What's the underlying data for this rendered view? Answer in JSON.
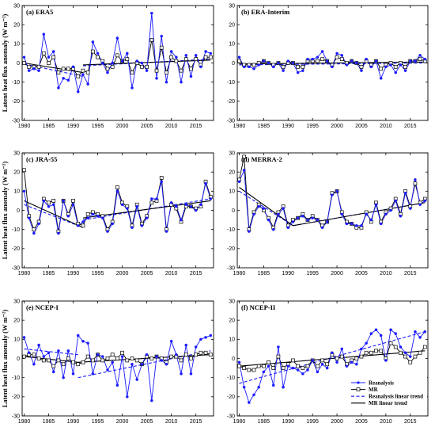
{
  "ylabel": "Latent heat flux anomaly (W m⁻²)",
  "legend": {
    "reanalysis": "Reanalysis",
    "mr": "MR",
    "rea_trend": "Reanalysis linear trend",
    "mr_trend": "MR linear trend"
  },
  "colors": {
    "reanalysis": "#1a1aff",
    "mr": "#000000"
  },
  "chart_data": [
    {
      "type": "line",
      "title": "(a) ERA5",
      "x_start": 1980,
      "xticks": [
        1980,
        1985,
        1990,
        1995,
        2000,
        2005,
        2010,
        2015
      ],
      "xlim": [
        1979.6,
        2018.6
      ],
      "ylim": [
        -30,
        30
      ],
      "yticks": [
        -30,
        -20,
        -10,
        0,
        10,
        20,
        30
      ],
      "series": [
        {
          "name": "Reanalysis",
          "values": [
            3,
            -4,
            -3,
            -4,
            15,
            3,
            6,
            -13,
            -8,
            -9,
            -2,
            -15,
            -6,
            -11,
            11,
            5,
            0,
            -5,
            0,
            13,
            1,
            5,
            -13,
            1,
            0,
            -4,
            26,
            -8,
            14,
            -10,
            6,
            3,
            -10,
            4,
            -7,
            4,
            -2,
            6,
            5
          ]
        },
        {
          "name": "MR",
          "values": [
            0,
            -2,
            -2,
            -2,
            5,
            0,
            3,
            -5,
            -3,
            -3,
            -3,
            -7,
            -4,
            -5,
            6,
            3,
            1,
            -3,
            -2,
            4,
            1,
            2,
            -5,
            0,
            -2,
            -2,
            12,
            -4,
            8,
            -5,
            3,
            1,
            -4,
            2,
            -3,
            2,
            -1,
            3,
            3
          ]
        }
      ],
      "trends": {
        "reanalysis": {
          "segments": [
            {
              "x0": 1980,
              "y0": -0.5,
              "x1": 1992,
              "y1": -7
            },
            {
              "x0": 1992,
              "y0": -1.5,
              "x1": 2018,
              "y1": 2
            }
          ]
        },
        "mr": {
          "segments": [
            {
              "x0": 1980,
              "y0": 0,
              "x1": 1992,
              "y1": -5
            },
            {
              "x0": 1992,
              "y0": -1,
              "x1": 2018,
              "y1": 1.5
            }
          ]
        }
      }
    },
    {
      "type": "line",
      "title": "(b) ERA-Interim",
      "x_start": 1980,
      "xticks": [
        1980,
        1985,
        1990,
        1995,
        2000,
        2005,
        2010,
        2015
      ],
      "xlim": [
        1979.6,
        2018.6
      ],
      "ylim": [
        -30,
        30
      ],
      "yticks": [
        -30,
        -20,
        -10,
        0,
        10,
        20,
        30
      ],
      "series": [
        {
          "name": "Reanalysis",
          "values": [
            3,
            -2,
            -2,
            -3,
            -1,
            1,
            0,
            -2,
            0,
            -4,
            1,
            0,
            -5,
            -4,
            2,
            2,
            3,
            6,
            1,
            -2,
            5,
            4,
            -1,
            1,
            0,
            -4,
            2,
            -2,
            1,
            -8,
            -2,
            -1,
            -5,
            -1,
            -4,
            1,
            1,
            4,
            2
          ]
        },
        {
          "name": "MR",
          "values": [
            1,
            -1,
            -1,
            -1,
            0,
            1,
            0,
            -1,
            0,
            -2,
            0,
            0,
            -2,
            -2,
            1,
            1,
            1,
            2,
            1,
            -1,
            3,
            2,
            0,
            1,
            0,
            -2,
            1,
            -1,
            1,
            -3,
            -1,
            0,
            -2,
            0,
            -2,
            1,
            1,
            2,
            1
          ]
        }
      ],
      "trends": {
        "reanalysis": {
          "segments": [
            {
              "x0": 1980,
              "y0": -1,
              "x1": 2018,
              "y1": 0
            }
          ]
        },
        "mr": {
          "segments": [
            {
              "x0": 1980,
              "y0": -0.5,
              "x1": 2018,
              "y1": 0.5
            }
          ]
        }
      }
    },
    {
      "type": "line",
      "title": "(c) JRA-55",
      "x_start": 1980,
      "xticks": [
        1980,
        1985,
        1990,
        1995,
        2000,
        2005,
        2010,
        2015
      ],
      "xlim": [
        1979.6,
        2018.6
      ],
      "ylim": [
        -30,
        30
      ],
      "yticks": [
        -30,
        -20,
        -10,
        0,
        10,
        20,
        30
      ],
      "series": [
        {
          "name": "Reanalysis",
          "values": [
            10,
            -4,
            -12,
            -7,
            5,
            2,
            3,
            -12,
            5,
            -3,
            3,
            -8,
            -6,
            -4,
            -2,
            -3,
            -4,
            -11,
            -7,
            10,
            3,
            1,
            -9,
            2,
            -8,
            -4,
            6,
            6,
            15,
            -11,
            4,
            2,
            -5,
            3,
            2,
            0,
            3,
            14,
            6
          ]
        },
        {
          "name": "MR",
          "values": [
            21,
            -3,
            -10,
            -6,
            6,
            4,
            5,
            -11,
            5,
            -2,
            5,
            -7,
            -8,
            -2,
            -1,
            -2,
            -3,
            -10,
            -6,
            12,
            4,
            2,
            -8,
            3,
            -7,
            -3,
            4,
            5,
            17,
            -10,
            3,
            1,
            -6,
            2,
            2,
            1,
            2,
            15,
            7
          ]
        }
      ],
      "trends": {
        "reanalysis": {
          "segments": [
            {
              "x0": 1980,
              "y0": 3,
              "x1": 1992,
              "y1": -9
            },
            {
              "x0": 1992,
              "y0": -5,
              "x1": 2018,
              "y1": 6
            }
          ]
        },
        "mr": {
          "segments": [
            {
              "x0": 1980,
              "y0": 5,
              "x1": 1992,
              "y1": -9
            },
            {
              "x0": 1992,
              "y0": -4,
              "x1": 2018,
              "y1": 5
            }
          ]
        }
      }
    },
    {
      "type": "line",
      "title": "(d) MERRA-2",
      "x_start": 1980,
      "xticks": [
        1980,
        1985,
        1990,
        1995,
        2000,
        2005,
        2010,
        2015
      ],
      "xlim": [
        1979.6,
        2018.6
      ],
      "ylim": [
        -30,
        30
      ],
      "yticks": [
        -30,
        -20,
        -10,
        0,
        10,
        20,
        30
      ],
      "series": [
        {
          "name": "Reanalysis",
          "values": [
            15,
            21,
            -11,
            -2,
            2,
            1,
            -5,
            -10,
            -2,
            1,
            -9,
            -6,
            -4,
            -3,
            -5,
            -4,
            -5,
            -9,
            -6,
            8,
            10,
            -2,
            -7,
            -7,
            -8,
            -8,
            -2,
            -5,
            3,
            -7,
            -2,
            0,
            5,
            -3,
            9,
            1,
            16,
            3,
            5
          ]
        },
        {
          "name": "MR",
          "values": [
            16,
            28,
            -10,
            -1,
            3,
            0,
            -4,
            -9,
            -1,
            2,
            -8,
            -5,
            -4,
            -2,
            -5,
            -3,
            -5,
            -8,
            -6,
            9,
            10,
            -1,
            -6,
            -7,
            -9,
            -9,
            -1,
            -6,
            4,
            -6,
            -1,
            1,
            6,
            -2,
            10,
            2,
            14,
            4,
            6
          ]
        }
      ],
      "trends": {
        "reanalysis": {
          "segments": [
            {
              "x0": 1980,
              "y0": 10,
              "x1": 1991,
              "y1": -8
            },
            {
              "x0": 1991,
              "y0": -8,
              "x1": 2018,
              "y1": 4
            }
          ]
        },
        "mr": {
          "segments": [
            {
              "x0": 1980,
              "y0": 12,
              "x1": 1991,
              "y1": -8
            },
            {
              "x0": 1991,
              "y0": -8,
              "x1": 2018,
              "y1": 4
            }
          ]
        }
      }
    },
    {
      "type": "line",
      "title": "(e) NCEP-I",
      "x_start": 1980,
      "xticks": [
        1980,
        1985,
        1990,
        1995,
        2000,
        2005,
        2010,
        2015
      ],
      "xlim": [
        1979.6,
        2018.6
      ],
      "ylim": [
        -30,
        30
      ],
      "yticks": [
        -30,
        -20,
        -10,
        0,
        10,
        20,
        30
      ],
      "series": [
        {
          "name": "Reanalysis",
          "values": [
            11,
            3,
            -3,
            7,
            1,
            3,
            -7,
            4,
            -10,
            4,
            -8,
            12,
            9,
            8,
            -8,
            2,
            1,
            -6,
            -2,
            -14,
            1,
            -20,
            -3,
            -11,
            -3,
            2,
            -22,
            1,
            -1,
            -3,
            9,
            2,
            -8,
            7,
            -8,
            6,
            10,
            11,
            12
          ]
        },
        {
          "name": "MR",
          "values": [
            1,
            2,
            2,
            0,
            -1,
            -1,
            -4,
            -1,
            -3,
            0,
            -2,
            -3,
            -2,
            1,
            -1,
            2,
            -1,
            0,
            2,
            0,
            3,
            -1,
            0,
            -1,
            -3,
            1,
            0,
            1,
            0,
            -2,
            1,
            1,
            -1,
            2,
            0,
            2,
            3,
            3,
            2
          ]
        }
      ],
      "trends": {
        "reanalysis": {
          "segments": [
            {
              "x0": 1980,
              "y0": 5,
              "x1": 1991,
              "y1": 2
            },
            {
              "x0": 1991,
              "y0": -10,
              "x1": 2018,
              "y1": 4
            }
          ]
        },
        "mr": {
          "segments": [
            {
              "x0": 1980,
              "y0": 1,
              "x1": 1991,
              "y1": -2
            },
            {
              "x0": 1991,
              "y0": -2,
              "x1": 2018,
              "y1": 2
            }
          ]
        }
      }
    },
    {
      "type": "line",
      "title": "(f) NCEP-II",
      "x_start": 1980,
      "xticks": [
        1980,
        1985,
        1990,
        1995,
        2000,
        2005,
        2010,
        2015
      ],
      "xlim": [
        1979.6,
        2018.6
      ],
      "ylim": [
        -30,
        30
      ],
      "yticks": [
        -30,
        -20,
        -10,
        0,
        10,
        20,
        30
      ],
      "series": [
        {
          "name": "Reanalysis",
          "values": [
            -2,
            -15,
            -23,
            -19,
            -15,
            -7,
            -4,
            -14,
            6,
            -15,
            -4,
            -5,
            -6,
            -8,
            -6,
            -1,
            -7,
            -3,
            -5,
            3,
            -2,
            5,
            -4,
            -2,
            -3,
            5,
            8,
            13,
            15,
            12,
            -1,
            15,
            13,
            6,
            3,
            1,
            14,
            11,
            14
          ]
        },
        {
          "name": "MR",
          "values": [
            -4,
            -5,
            -6,
            -6,
            -4,
            -4,
            -2,
            -5,
            1,
            -5,
            -3,
            -1,
            -4,
            -5,
            -4,
            -1,
            -4,
            -1,
            -3,
            2,
            0,
            1,
            -3,
            -1,
            0,
            1,
            3,
            3,
            4,
            4,
            0,
            8,
            6,
            3,
            1,
            -2,
            1,
            3,
            6
          ]
        }
      ],
      "trends": {
        "reanalysis": {
          "segments": [
            {
              "x0": 1980,
              "y0": -13,
              "x1": 2018,
              "y1": 14
            }
          ]
        },
        "mr": {
          "segments": [
            {
              "x0": 1980,
              "y0": -4,
              "x1": 2018,
              "y1": 4
            }
          ]
        }
      }
    }
  ]
}
